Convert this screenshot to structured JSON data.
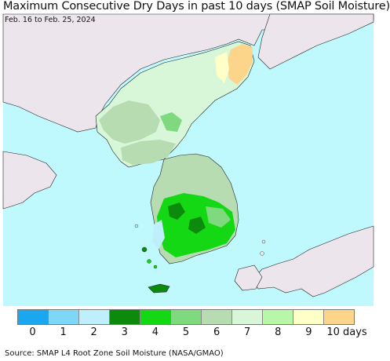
{
  "title": "Maximum Consecutive Dry Days in past 10 days (SMAP Soil Moisture)",
  "subtitle": "Feb. 16 to Feb. 25, 2024",
  "legend": {
    "colors": [
      "#1aa7ef",
      "#7fd7f7",
      "#bfeffc",
      "#0b8a0b",
      "#13d813",
      "#7fd97f",
      "#b7dcb1",
      "#d8f7d8",
      "#b8f7a8",
      "#ffffc8",
      "#fdd58a"
    ],
    "labels": [
      "0",
      "1",
      "2",
      "3",
      "4",
      "5",
      "6",
      "7",
      "8",
      "9",
      "10 days"
    ]
  },
  "source": "Source: SMAP L4 Root Zone Soil Moisture (NASA/GMAO)"
}
